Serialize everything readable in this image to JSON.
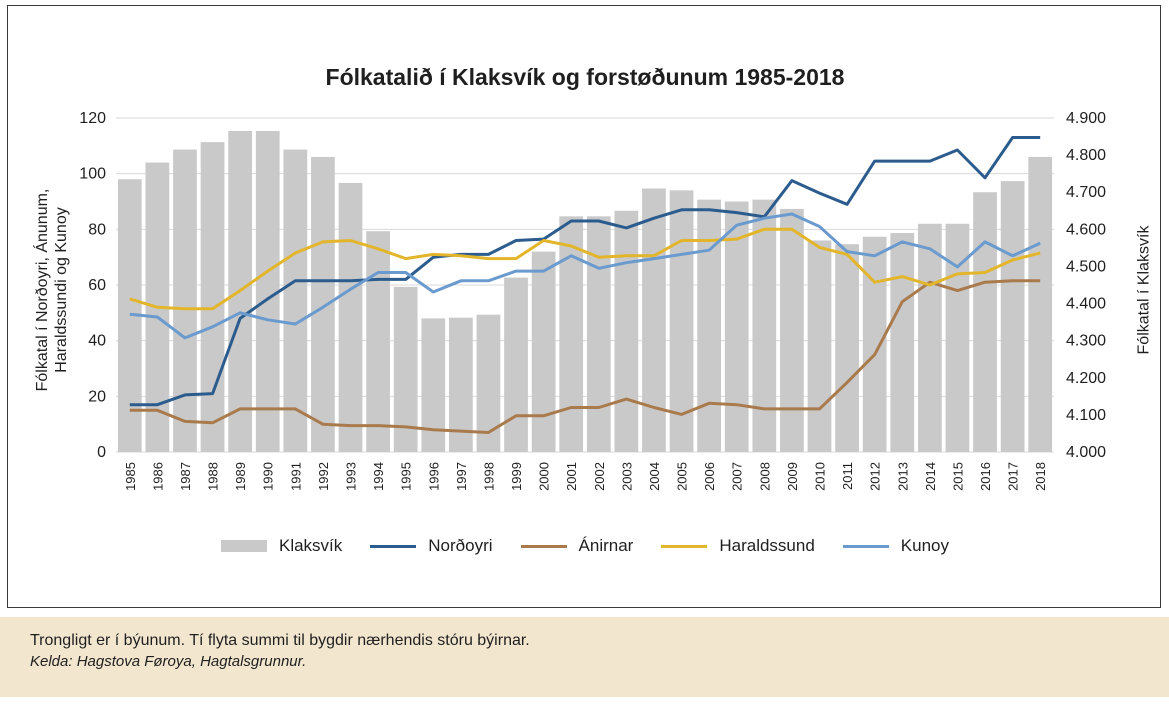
{
  "chart_data": {
    "type": "bar+line",
    "title": "Fólkatalið í Klaksvík og forstøðunum 1985-2018",
    "ylabel_left": "Fólkatal í Norðoyri, Ánunum, Haraldssundi og Kunoy",
    "ylabel_right": "Fólkatal í Klaksvík",
    "ylim_left": [
      0,
      120
    ],
    "yticks_left": [
      "0",
      "20",
      "40",
      "60",
      "80",
      "100",
      "120"
    ],
    "ylim_right": [
      4000,
      4900
    ],
    "yticks_right": [
      "4.000",
      "4.100",
      "4.200",
      "4.300",
      "4.400",
      "4.500",
      "4.600",
      "4.700",
      "4.800",
      "4.900"
    ],
    "grid": true,
    "legend_position": "bottom",
    "categories": [
      "1985",
      "1986",
      "1987",
      "1988",
      "1989",
      "1990",
      "1991",
      "1992",
      "1993",
      "1994",
      "1995",
      "1996",
      "1997",
      "1998",
      "1999",
      "2000",
      "2001",
      "2002",
      "2003",
      "2004",
      "2005",
      "2006",
      "2007",
      "2008",
      "2009",
      "2010",
      "2011",
      "2012",
      "2013",
      "2014",
      "2015",
      "2016",
      "2017",
      "2018"
    ],
    "bar_series": {
      "name": "Klaksvík",
      "axis": "right",
      "color": "#c9c9c9",
      "values": [
        4735,
        4780,
        4815,
        4835,
        4865,
        4865,
        4815,
        4795,
        4725,
        4595,
        4445,
        4360,
        4362,
        4370,
        4470,
        4540,
        4635,
        4635,
        4650,
        4710,
        4705,
        4680,
        4675,
        4680,
        4655,
        4570,
        4560,
        4580,
        4590,
        4615,
        4615,
        4700,
        4730,
        4795
      ]
    },
    "line_series": [
      {
        "name": "Norðoyri",
        "axis": "left",
        "color": "#2b5c8d",
        "values": [
          17,
          17,
          20.5,
          21,
          48,
          55,
          61.5,
          61.5,
          61.5,
          62,
          62,
          70,
          71,
          71,
          76,
          76.5,
          83,
          83,
          80.5,
          84,
          87,
          87,
          86,
          84.5,
          97.5,
          93,
          89,
          104.5,
          104.5,
          104.5,
          108.5,
          98.5,
          113,
          113
        ]
      },
      {
        "name": "Ánirnar",
        "axis": "left",
        "color": "#a97a4c",
        "values": [
          15,
          15,
          11,
          10.5,
          15.5,
          15.5,
          15.5,
          10,
          9.5,
          9.5,
          9,
          8,
          7.5,
          7,
          13,
          13,
          16,
          16,
          19,
          16,
          13.5,
          17.5,
          17,
          15.5,
          15.5,
          15.5,
          25,
          35,
          54,
          61,
          58,
          61,
          61.5,
          61.5
        ]
      },
      {
        "name": "Haraldssund",
        "axis": "left",
        "color": "#e2b52b",
        "values": [
          55,
          52,
          51.5,
          51.5,
          58,
          65,
          71.5,
          75.5,
          76,
          73,
          69.5,
          71,
          70.5,
          69.5,
          69.5,
          76,
          74,
          70,
          70.5,
          70.5,
          76,
          76,
          76.5,
          80,
          80,
          73.5,
          71,
          61,
          63,
          60,
          64,
          64.5,
          69,
          71.5
        ]
      },
      {
        "name": "Kunoy",
        "axis": "left",
        "color": "#6a9ace",
        "values": [
          49.5,
          48.5,
          41,
          45,
          50,
          47.5,
          46,
          52,
          58.5,
          64.5,
          64.5,
          57.5,
          61.5,
          61.5,
          65,
          65,
          70.5,
          66,
          68,
          69.5,
          71,
          72.5,
          81.5,
          84,
          85.5,
          81,
          72,
          70.5,
          75.5,
          73,
          66.5,
          75.5,
          70.5,
          75
        ]
      }
    ]
  },
  "note": {
    "text": "Trongligt er í býunum. Tí flyta summi til bygdir nærhendis stóru býirnar.",
    "source": "Kelda: Hagstova Føroya, Hagtalsgrunnur."
  }
}
